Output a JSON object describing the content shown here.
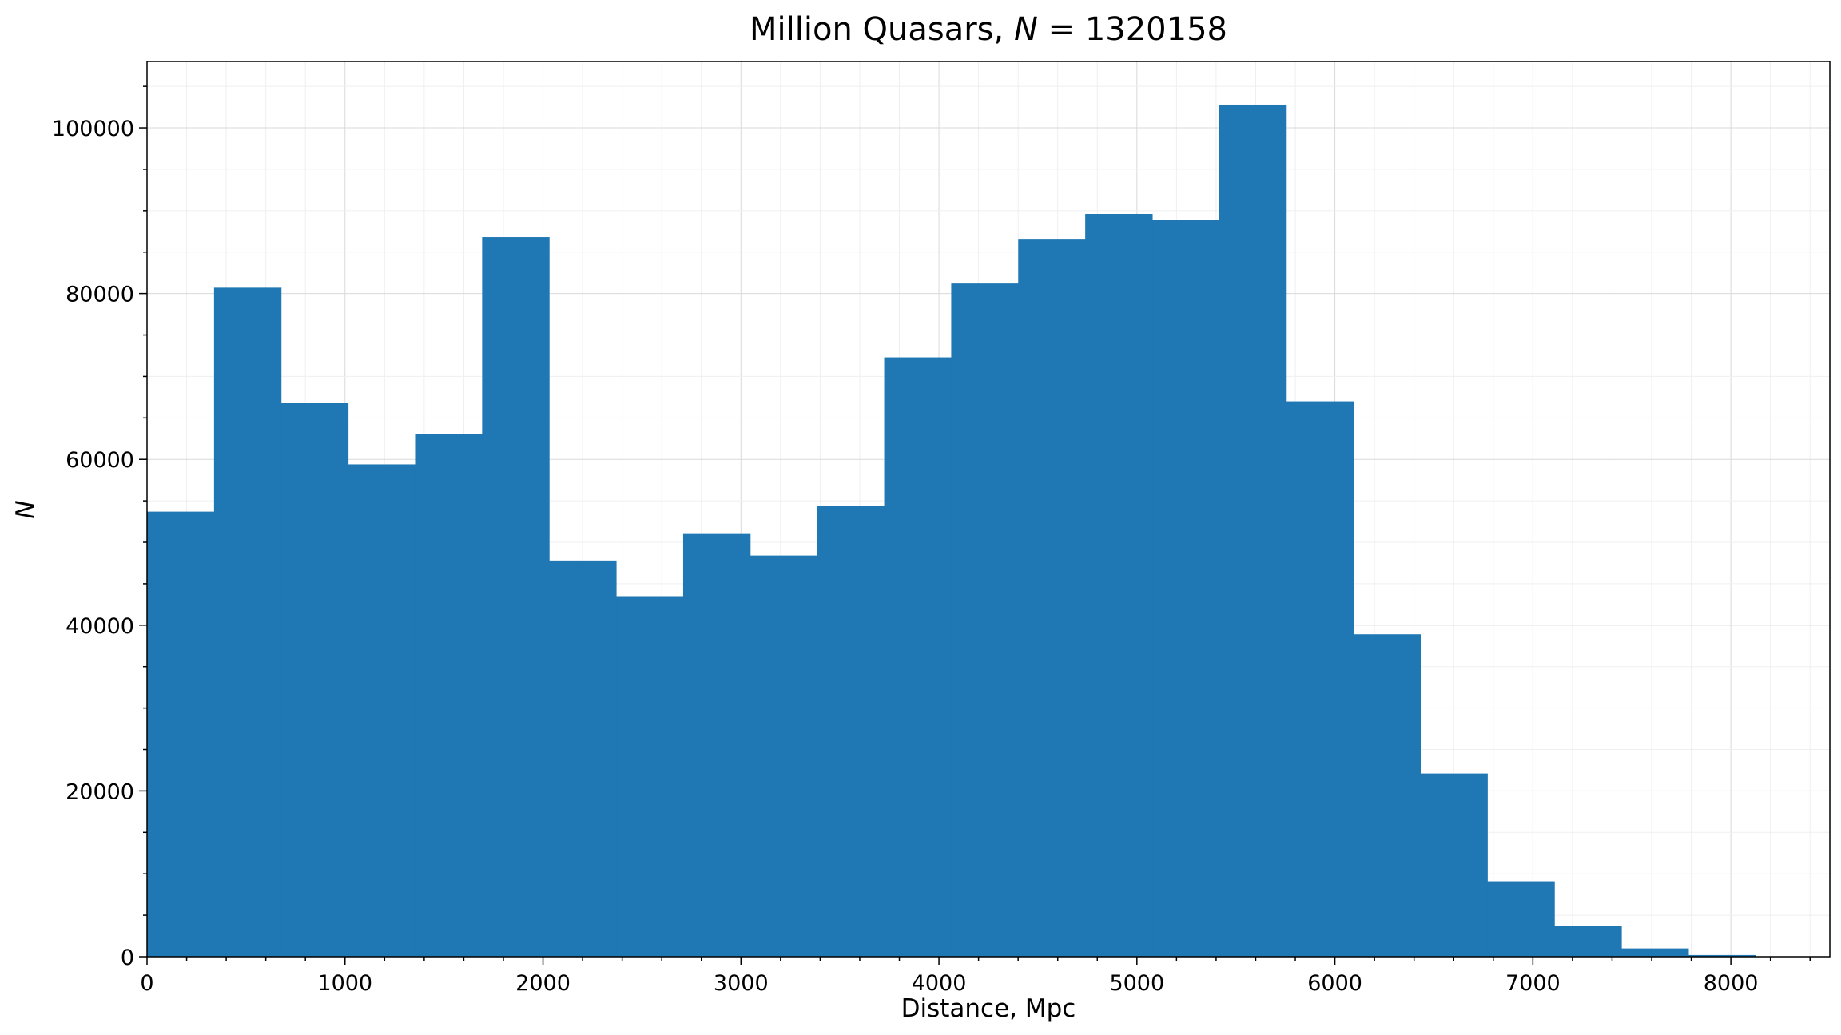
{
  "chart_data": {
    "type": "bar",
    "title_main": "Million Quasars, ",
    "title_var": "N",
    "title_eq": " = 1320158",
    "xlabel": "Distance, Mpc",
    "ylabel": "N",
    "xlim": [
      0,
      8500
    ],
    "ylim": [
      0,
      108000
    ],
    "xticks": [
      0,
      1000,
      2000,
      3000,
      4000,
      5000,
      6000,
      7000,
      8000
    ],
    "yticks": [
      0,
      20000,
      40000,
      60000,
      80000,
      100000
    ],
    "grid": true,
    "bin_edges": [
      0,
      338.5,
      677,
      1015.5,
      1354,
      1692.5,
      2031,
      2369.5,
      2708,
      3046.5,
      3385,
      3723.5,
      4062,
      4400.5,
      4739,
      5077.5,
      5416,
      5754.5,
      6093,
      6431.5,
      6770,
      7108.5,
      7447,
      7785.5,
      8124
    ],
    "values": [
      53700,
      80700,
      66800,
      59400,
      63100,
      86800,
      47800,
      43500,
      51000,
      48400,
      54400,
      72300,
      81300,
      86600,
      89600,
      88900,
      102800,
      67000,
      38900,
      22100,
      9100,
      3700,
      1000,
      200
    ],
    "bar_color": "#1f77b4"
  }
}
